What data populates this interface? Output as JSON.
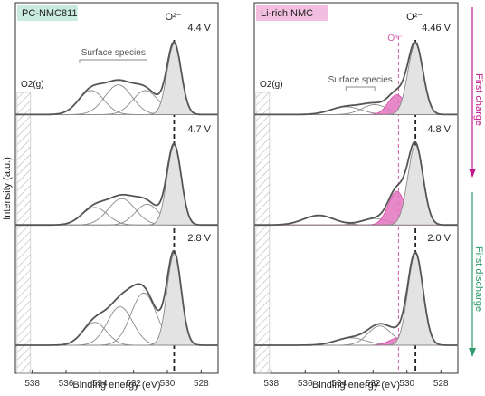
{
  "chart_data": [
    {
      "type": "line",
      "badge": "PC-NMC811",
      "badge_color": "#c9ebe0",
      "xlabel": "Binding energy (eV)",
      "ylabel": "Intensity (a.u.)",
      "xlim": [
        539,
        527
      ],
      "xticks": [
        538,
        536,
        534,
        532,
        530,
        528
      ],
      "peak_label": "O²⁻",
      "peak_position": 529.6,
      "o2g_label": "O2(g)",
      "o2g_range": [
        538.9,
        538.1
      ],
      "surface_label": "Surface species",
      "panels": [
        {
          "label": "4.4 V",
          "peaks": [
            {
              "center": 534.5,
              "height": 0.34,
              "width": 0.75
            },
            {
              "center": 532.9,
              "height": 0.42,
              "width": 0.8
            },
            {
              "center": 531.3,
              "height": 0.34,
              "width": 0.75
            },
            {
              "center": 529.6,
              "height": 1.0,
              "width": 0.42
            }
          ]
        },
        {
          "label": "4.7 V",
          "peaks": [
            {
              "center": 534.3,
              "height": 0.22,
              "width": 0.75
            },
            {
              "center": 532.7,
              "height": 0.33,
              "width": 0.8
            },
            {
              "center": 531.2,
              "height": 0.26,
              "width": 0.7
            },
            {
              "center": 529.6,
              "height": 1.0,
              "width": 0.42
            }
          ]
        },
        {
          "label": "2.8 V",
          "peaks": [
            {
              "center": 534.3,
              "height": 0.25,
              "width": 0.7
            },
            {
              "center": 532.8,
              "height": 0.42,
              "width": 0.75
            },
            {
              "center": 531.4,
              "height": 0.57,
              "width": 0.75
            },
            {
              "center": 529.6,
              "height": 1.0,
              "width": 0.42
            }
          ]
        }
      ]
    },
    {
      "type": "line",
      "badge": "Li-rich NMC",
      "badge_color": "#f3bfe0",
      "xlabel": "Binding energy (eV)",
      "xlim": [
        539,
        527
      ],
      "xticks": [
        538,
        536,
        534,
        532,
        530,
        528
      ],
      "peak_label": "O²⁻",
      "peak_position": 529.5,
      "on_label": "Oⁿ⁻",
      "on_position": 530.5,
      "o2g_label": "O2(g)",
      "o2g_range": [
        538.9,
        538.1
      ],
      "surface_label": "Surface species",
      "panels": [
        {
          "label": "4.46 V",
          "peaks": [
            {
              "center": 533.6,
              "height": 0.11,
              "width": 0.9
            },
            {
              "center": 531.9,
              "height": 0.14,
              "width": 0.75
            },
            {
              "center": 530.6,
              "height": 0.28,
              "width": 0.5,
              "pink": true
            },
            {
              "center": 529.5,
              "height": 1.0,
              "width": 0.45
            }
          ]
        },
        {
          "label": "4.8 V",
          "peaks": [
            {
              "center": 535.2,
              "height": 0.12,
              "width": 0.9
            },
            {
              "center": 531.9,
              "height": 0.08,
              "width": 0.75
            },
            {
              "center": 530.6,
              "height": 0.42,
              "width": 0.5,
              "pink": true
            },
            {
              "center": 529.5,
              "height": 1.0,
              "width": 0.45
            }
          ]
        },
        {
          "label": "2.0 V",
          "peaks": [
            {
              "center": 533.3,
              "height": 0.08,
              "width": 0.9
            },
            {
              "center": 531.6,
              "height": 0.21,
              "width": 0.7
            },
            {
              "center": 530.5,
              "height": 0.08,
              "width": 0.55,
              "pink": true
            },
            {
              "center": 529.5,
              "height": 1.0,
              "width": 0.45
            }
          ]
        }
      ]
    }
  ],
  "arrows": {
    "charge_label": "First charge",
    "charge_color": "#c2188a",
    "discharge_label": "First discharge",
    "discharge_color": "#2e9a6c"
  }
}
